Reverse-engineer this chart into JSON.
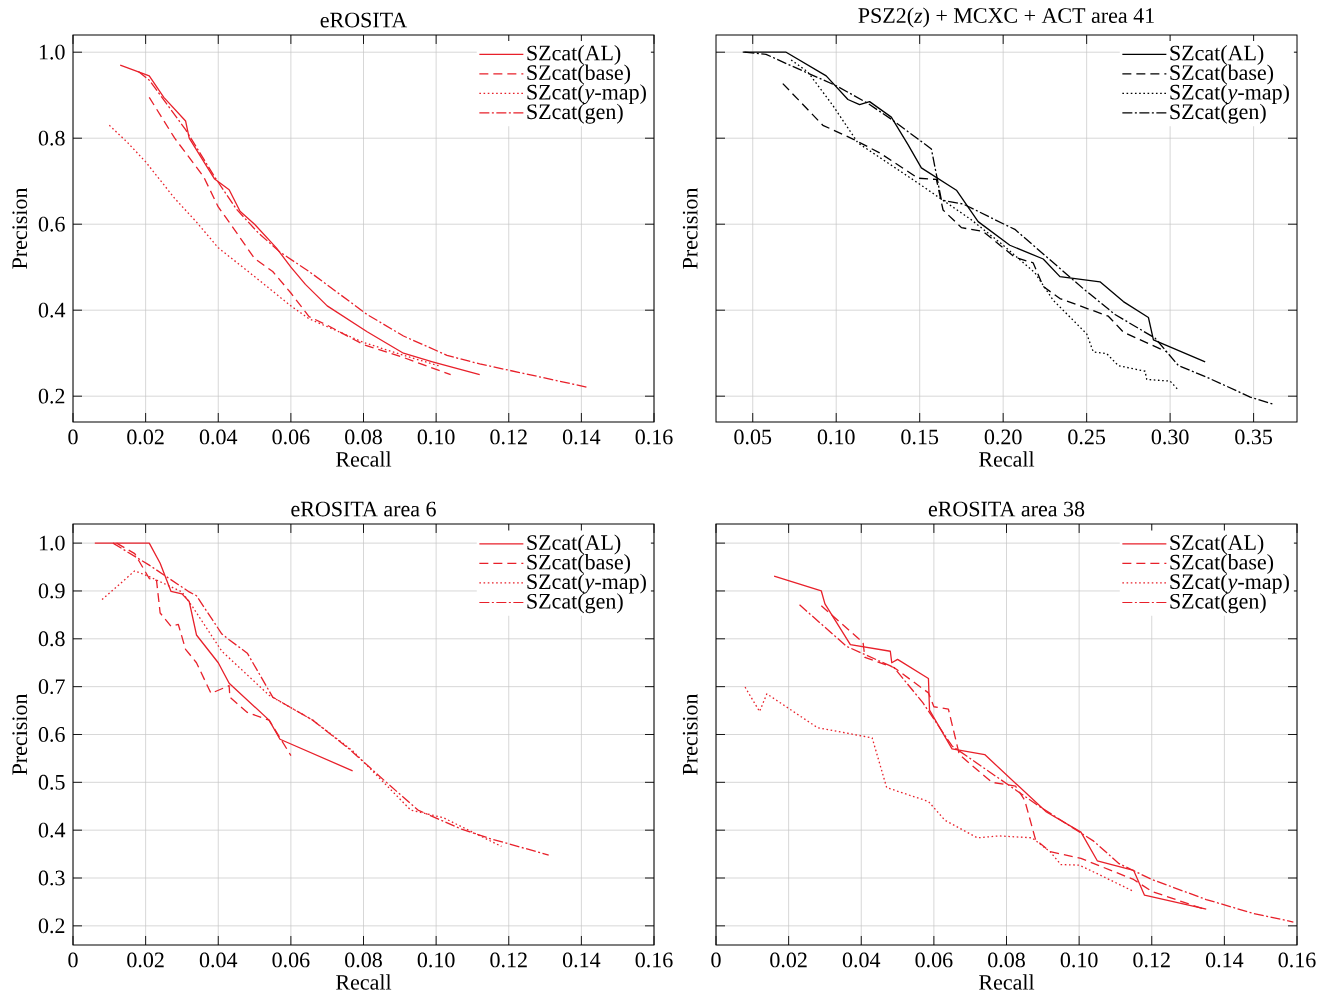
{
  "chart_data": [
    {
      "type": "line",
      "title": "eROSITA",
      "xlabel": "Recall",
      "ylabel": "Precision",
      "grid": true,
      "legend": "top right",
      "xlim": [
        0,
        0.16
      ],
      "ylim": [
        0.14,
        1.04
      ],
      "xticks": [
        0,
        0.02,
        0.04,
        0.06,
        0.08,
        {
          "value": 0.1,
          "label": "0.10"
        },
        0.12,
        0.14,
        0.16
      ],
      "yticks": [
        0.2,
        0.4,
        0.6,
        0.8,
        {
          "value": 1.0,
          "label": "1.0"
        }
      ],
      "series": [
        {
          "name": "SZcat(AL)",
          "color": "#e8202a",
          "line_style": "solid",
          "x": [
            0.013,
            0.021,
            0.025,
            0.031,
            0.032,
            0.039,
            0.043,
            0.046,
            0.05,
            0.056,
            0.06,
            0.064,
            0.07,
            0.081,
            0.091,
            0.099,
            0.112
          ],
          "values": [
            0.97,
            0.945,
            0.895,
            0.84,
            0.8,
            0.705,
            0.68,
            0.63,
            0.6,
            0.545,
            0.5,
            0.46,
            0.41,
            0.35,
            0.3,
            0.28,
            0.25
          ]
        },
        {
          "name": "SZcat(base)",
          "color": "#e8202a",
          "line_style": "dashed",
          "x": [
            0.021,
            0.028,
            0.036,
            0.04,
            0.043,
            0.05,
            0.055,
            0.06,
            0.065,
            0.07,
            0.08,
            0.091,
            0.104
          ],
          "values": [
            0.895,
            0.8,
            0.71,
            0.64,
            0.605,
            0.52,
            0.49,
            0.44,
            0.385,
            0.365,
            0.32,
            0.29,
            0.25
          ]
        },
        {
          "name": "SZcat(*y*-map)",
          "color": "#e8202a",
          "line_style": "dotted",
          "x": [
            0.01,
            0.015,
            0.02,
            0.028,
            0.034,
            0.04,
            0.049,
            0.06,
            0.065,
            0.08,
            0.091,
            0.101
          ],
          "values": [
            0.83,
            0.79,
            0.745,
            0.66,
            0.605,
            0.545,
            0.485,
            0.41,
            0.38,
            0.325,
            0.295,
            0.27
          ]
        },
        {
          "name": "SZcat(gen)",
          "color": "#e8202a",
          "line_style": "dashdot",
          "x": [
            0.018,
            0.021,
            0.031,
            0.039,
            0.045,
            0.051,
            0.057,
            0.065,
            0.081,
            0.091,
            0.103,
            0.112,
            0.123,
            0.142
          ],
          "values": [
            0.955,
            0.935,
            0.82,
            0.71,
            0.635,
            0.58,
            0.535,
            0.49,
            0.39,
            0.34,
            0.295,
            0.275,
            0.255,
            0.22
          ]
        }
      ]
    },
    {
      "type": "line",
      "title": "PSZ2(*z*) + MCXC + ACT area 41",
      "xlabel": "Recall",
      "ylabel": "Precision",
      "grid": true,
      "legend": "top right",
      "tick_labels": "x",
      "xlim": [
        0.028,
        0.376
      ],
      "ylim": [
        0.14,
        1.04
      ],
      "xticks": [
        0.05,
        {
          "value": 0.1,
          "label": "0.10"
        },
        0.15,
        {
          "value": 0.2,
          "label": "0.20"
        },
        0.25,
        {
          "value": 0.3,
          "label": "0.30"
        },
        0.35
      ],
      "yticks": [
        0.2,
        0.4,
        0.6,
        0.8,
        1.0
      ],
      "series": [
        {
          "name": "SZcat(AL)",
          "color": "#000000",
          "line_style": "solid",
          "x": [
            0.044,
            0.07,
            0.094,
            0.107,
            0.114,
            0.12,
            0.133,
            0.143,
            0.151,
            0.172,
            0.185,
            0.204,
            0.224,
            0.234,
            0.258,
            0.272,
            0.287,
            0.29,
            0.321
          ],
          "values": [
            1.0,
            1.0,
            0.945,
            0.89,
            0.878,
            0.885,
            0.849,
            0.785,
            0.731,
            0.679,
            0.606,
            0.551,
            0.519,
            0.478,
            0.466,
            0.42,
            0.383,
            0.331,
            0.28
          ]
        },
        {
          "name": "SZcat(base)",
          "color": "#000000",
          "line_style": "dashed",
          "x": [
            0.068,
            0.092,
            0.11,
            0.126,
            0.149,
            0.16,
            0.164,
            0.175,
            0.188,
            0.207,
            0.218,
            0.224,
            0.234,
            0.263,
            0.272,
            0.298
          ],
          "values": [
            0.927,
            0.83,
            0.798,
            0.766,
            0.707,
            0.704,
            0.633,
            0.592,
            0.583,
            0.523,
            0.51,
            0.455,
            0.427,
            0.386,
            0.349,
            0.303
          ]
        },
        {
          "name": "SZcat(*y*-map)",
          "color": "#000000",
          "line_style": "dotted",
          "x": [
            0.073,
            0.083,
            0.098,
            0.113,
            0.15,
            0.181,
            0.2,
            0.219,
            0.23,
            0.25,
            0.254,
            0.262,
            0.269,
            0.285,
            0.286,
            0.3,
            0.305
          ],
          "values": [
            0.982,
            0.954,
            0.876,
            0.789,
            0.693,
            0.61,
            0.551,
            0.487,
            0.423,
            0.345,
            0.303,
            0.299,
            0.271,
            0.258,
            0.239,
            0.235,
            0.214
          ]
        },
        {
          "name": "SZcat(gen)",
          "color": "#000000",
          "line_style": "dashdot",
          "x": [
            0.045,
            0.058,
            0.071,
            0.1,
            0.119,
            0.133,
            0.149,
            0.157,
            0.163,
            0.176,
            0.2,
            0.207,
            0.248,
            0.267,
            0.291,
            0.305,
            0.322,
            0.348,
            0.362
          ],
          "values": [
            1.0,
            0.995,
            0.972,
            0.922,
            0.881,
            0.844,
            0.798,
            0.775,
            0.656,
            0.647,
            0.601,
            0.588,
            0.45,
            0.39,
            0.335,
            0.271,
            0.244,
            0.198,
            0.181
          ]
        }
      ]
    },
    {
      "type": "line",
      "title": "eROSITA area 6",
      "xlabel": "Recall",
      "ylabel": "Precision",
      "grid": true,
      "legend": "top right",
      "xlim": [
        0,
        0.16
      ],
      "ylim": [
        0.16,
        1.04
      ],
      "xticks": [
        0,
        0.02,
        0.04,
        0.06,
        0.08,
        {
          "value": 0.1,
          "label": "0.10"
        },
        0.12,
        0.14,
        0.16
      ],
      "yticks": [
        0.2,
        0.3,
        0.4,
        0.5,
        0.6,
        0.7,
        0.8,
        0.9,
        {
          "value": 1.0,
          "label": "1.0"
        }
      ],
      "series": [
        {
          "name": "SZcat(AL)",
          "color": "#e8202a",
          "line_style": "solid",
          "x": [
            0.006,
            0.021,
            0.024,
            0.027,
            0.03,
            0.032,
            0.034,
            0.04,
            0.043,
            0.054,
            0.057,
            0.077
          ],
          "values": [
            1.0,
            1.0,
            0.958,
            0.899,
            0.894,
            0.878,
            0.808,
            0.75,
            0.707,
            0.63,
            0.59,
            0.524
          ]
        },
        {
          "name": "SZcat(base)",
          "color": "#e8202a",
          "line_style": "dashed",
          "x": [
            0.012,
            0.017,
            0.021,
            0.023,
            0.024,
            0.027,
            0.029,
            0.031,
            0.034,
            0.038,
            0.043,
            0.0432,
            0.048,
            0.054,
            0.06
          ],
          "values": [
            1.0,
            0.978,
            0.926,
            0.922,
            0.854,
            0.826,
            0.83,
            0.778,
            0.75,
            0.686,
            0.702,
            0.678,
            0.646,
            0.63,
            0.556
          ]
        },
        {
          "name": "SZcat(*y*-map)",
          "color": "#e8202a",
          "line_style": "dotted",
          "x": [
            0.008,
            0.017,
            0.021,
            0.03,
            0.033,
            0.041,
            0.054,
            0.066,
            0.077,
            0.093,
            0.102,
            0.118
          ],
          "values": [
            0.882,
            0.942,
            0.93,
            0.898,
            0.866,
            0.774,
            0.682,
            0.63,
            0.566,
            0.442,
            0.426,
            0.366
          ]
        },
        {
          "name": "SZcat(gen)",
          "color": "#e8202a",
          "line_style": "dashdot",
          "x": [
            0.011,
            0.021,
            0.032,
            0.034,
            0.041,
            0.043,
            0.048,
            0.055,
            0.066,
            0.076,
            0.086,
            0.095,
            0.107,
            0.115,
            0.131
          ],
          "values": [
            1.0,
            0.954,
            0.898,
            0.89,
            0.81,
            0.798,
            0.77,
            0.678,
            0.63,
            0.57,
            0.502,
            0.442,
            0.402,
            0.382,
            0.348
          ]
        }
      ]
    },
    {
      "type": "line",
      "title": "eROSITA area 38",
      "xlabel": "Recall",
      "ylabel": "Precision",
      "grid": true,
      "legend": "top right",
      "tick_labels": "x",
      "xlim": [
        0,
        0.16
      ],
      "ylim": [
        0.16,
        1.04
      ],
      "xticks": [
        0,
        0.02,
        0.04,
        0.06,
        0.08,
        {
          "value": 0.1,
          "label": "0.10"
        },
        0.12,
        0.14,
        0.16
      ],
      "yticks": [
        0.2,
        0.3,
        0.4,
        0.5,
        0.6,
        0.7,
        0.8,
        0.9,
        1.0
      ],
      "series": [
        {
          "name": "SZcat(AL)",
          "color": "#e8202a",
          "line_style": "solid",
          "x": [
            0.016,
            0.029,
            0.03,
            0.037,
            0.048,
            0.0484,
            0.05,
            0.0585,
            0.0588,
            0.065,
            0.074,
            0.091,
            0.1005,
            0.105,
            0.115,
            0.118,
            0.135
          ],
          "values": [
            0.931,
            0.9,
            0.873,
            0.788,
            0.774,
            0.75,
            0.757,
            0.717,
            0.651,
            0.57,
            0.558,
            0.438,
            0.396,
            0.336,
            0.316,
            0.264,
            0.235
          ]
        },
        {
          "name": "SZcat(base)",
          "color": "#e8202a",
          "line_style": "dashed",
          "x": [
            0.029,
            0.0405,
            0.041,
            0.049,
            0.0585,
            0.06,
            0.064,
            0.067,
            0.076,
            0.0825,
            0.085,
            0.088,
            0.092,
            0.1005,
            0.115,
            0.12,
            0.134
          ],
          "values": [
            0.869,
            0.792,
            0.761,
            0.74,
            0.687,
            0.658,
            0.653,
            0.558,
            0.5,
            0.492,
            0.463,
            0.38,
            0.355,
            0.341,
            0.297,
            0.272,
            0.236
          ]
        },
        {
          "name": "SZcat(*y*-map)",
          "color": "#e8202a",
          "line_style": "dotted",
          "x": [
            0.008,
            0.012,
            0.014,
            0.028,
            0.043,
            0.047,
            0.0585,
            0.063,
            0.072,
            0.078,
            0.087,
            0.092,
            0.095,
            0.1,
            0.105,
            0.115
          ],
          "values": [
            0.699,
            0.648,
            0.685,
            0.614,
            0.593,
            0.489,
            0.46,
            0.421,
            0.384,
            0.388,
            0.384,
            0.355,
            0.328,
            0.327,
            0.309,
            0.272
          ]
        },
        {
          "name": "SZcat(gen)",
          "color": "#e8202a",
          "line_style": "dashdot",
          "x": [
            0.023,
            0.036,
            0.049,
            0.057,
            0.065,
            0.089,
            0.104,
            0.111,
            0.12,
            0.135,
            0.148,
            0.159
          ],
          "values": [
            0.871,
            0.784,
            0.74,
            0.666,
            0.576,
            0.45,
            0.377,
            0.33,
            0.297,
            0.255,
            0.226,
            0.208
          ]
        }
      ]
    }
  ]
}
